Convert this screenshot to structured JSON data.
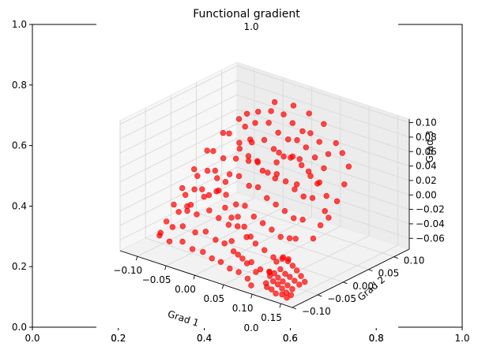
{
  "chart_data": {
    "type": "scatter",
    "title": "Functional gradient",
    "colors": {
      "points": "#ff0000",
      "pane": "#f2f2f2",
      "grid": "#d9d9d9"
    },
    "outer_axes": {
      "xlim": [
        0,
        1
      ],
      "ylim": [
        0,
        1
      ],
      "x_ticks": [
        "0.0",
        "0.2",
        "0.4",
        "0.6",
        "0.8",
        "1.0"
      ],
      "y_ticks": [
        "0.0",
        "0.2",
        "0.4",
        "0.6",
        "0.8",
        "1.0"
      ],
      "inner_x_ticks": [
        "0.0",
        "0.2",
        "0.4",
        "0.6",
        "0.8",
        "1.0"
      ],
      "stray_ticks": [
        "1.0",
        "0.0"
      ]
    },
    "axes3d": {
      "xlabel": "Grad 1",
      "ylabel": "Grad 2",
      "zlabel": "Grad 3",
      "xlim": [
        -0.13,
        0.17
      ],
      "ylim": [
        -0.1,
        0.13
      ],
      "zlim": [
        -0.075,
        0.105
      ],
      "x_ticks": [
        "−0.10",
        "−0.05",
        "0.00",
        "0.05",
        "0.10",
        "0.15"
      ],
      "y_ticks": [
        "−0.10",
        "−0.05",
        "0.00",
        "0.05",
        "0.10"
      ],
      "z_ticks": [
        "−0.06",
        "−0.04",
        "−0.02",
        "0.00",
        "0.02",
        "0.04",
        "0.06",
        "0.08",
        "0.10"
      ],
      "x_tick_values": [
        -0.1,
        -0.05,
        0.0,
        0.05,
        0.1,
        0.15
      ],
      "y_tick_values": [
        -0.1,
        -0.05,
        0.0,
        0.05,
        0.1
      ],
      "z_tick_values": [
        -0.06,
        -0.04,
        -0.02,
        0.0,
        0.02,
        0.04,
        0.06,
        0.08,
        0.1
      ],
      "grid": true
    },
    "points": [
      {
        "x": -0.095,
        "y": 0.11,
        "z": 0.05
      },
      {
        "x": -0.08,
        "y": 0.115,
        "z": 0.055
      },
      {
        "x": -0.06,
        "y": 0.118,
        "z": 0.06
      },
      {
        "x": -0.04,
        "y": 0.12,
        "z": 0.06
      },
      {
        "x": -0.02,
        "y": 0.115,
        "z": 0.055
      },
      {
        "x": 0.0,
        "y": 0.112,
        "z": 0.05
      },
      {
        "x": 0.02,
        "y": 0.105,
        "z": 0.055
      },
      {
        "x": 0.04,
        "y": 0.1,
        "z": 0.05
      },
      {
        "x": 0.06,
        "y": 0.095,
        "z": 0.04
      },
      {
        "x": -0.1,
        "y": 0.1,
        "z": 0.045
      },
      {
        "x": -0.085,
        "y": 0.095,
        "z": 0.04
      },
      {
        "x": -0.07,
        "y": 0.098,
        "z": 0.048
      },
      {
        "x": -0.05,
        "y": 0.102,
        "z": 0.052
      },
      {
        "x": -0.03,
        "y": 0.098,
        "z": 0.045
      },
      {
        "x": -0.01,
        "y": 0.095,
        "z": 0.042
      },
      {
        "x": 0.01,
        "y": 0.09,
        "z": 0.048
      },
      {
        "x": 0.03,
        "y": 0.085,
        "z": 0.045
      },
      {
        "x": 0.05,
        "y": 0.08,
        "z": 0.038
      },
      {
        "x": 0.07,
        "y": 0.075,
        "z": 0.03
      },
      {
        "x": -0.11,
        "y": 0.08,
        "z": 0.03
      },
      {
        "x": -0.095,
        "y": 0.075,
        "z": 0.035
      },
      {
        "x": -0.08,
        "y": 0.078,
        "z": 0.025
      },
      {
        "x": -0.06,
        "y": 0.08,
        "z": 0.03
      },
      {
        "x": -0.04,
        "y": 0.082,
        "z": 0.038
      },
      {
        "x": -0.02,
        "y": 0.078,
        "z": 0.032
      },
      {
        "x": 0.0,
        "y": 0.075,
        "z": 0.028
      },
      {
        "x": 0.02,
        "y": 0.07,
        "z": 0.035
      },
      {
        "x": 0.04,
        "y": 0.065,
        "z": 0.03
      },
      {
        "x": 0.06,
        "y": 0.06,
        "z": 0.022
      },
      {
        "x": 0.08,
        "y": 0.055,
        "z": 0.02
      },
      {
        "x": -0.12,
        "y": 0.06,
        "z": 0.01
      },
      {
        "x": -0.105,
        "y": 0.055,
        "z": 0.015
      },
      {
        "x": -0.09,
        "y": 0.058,
        "z": 0.008
      },
      {
        "x": -0.07,
        "y": 0.06,
        "z": 0.012
      },
      {
        "x": -0.05,
        "y": 0.062,
        "z": 0.02
      },
      {
        "x": -0.03,
        "y": 0.058,
        "z": 0.018
      },
      {
        "x": -0.01,
        "y": 0.055,
        "z": 0.01
      },
      {
        "x": 0.01,
        "y": 0.05,
        "z": 0.015
      },
      {
        "x": 0.03,
        "y": 0.045,
        "z": 0.012
      },
      {
        "x": 0.05,
        "y": 0.04,
        "z": 0.008
      },
      {
        "x": 0.07,
        "y": 0.035,
        "z": 0.005
      },
      {
        "x": 0.09,
        "y": 0.03,
        "z": 0.01
      },
      {
        "x": -0.125,
        "y": 0.04,
        "z": -0.01
      },
      {
        "x": -0.115,
        "y": 0.035,
        "z": -0.015
      },
      {
        "x": -0.1,
        "y": 0.038,
        "z": -0.005
      },
      {
        "x": -0.085,
        "y": 0.04,
        "z": -0.012
      },
      {
        "x": -0.065,
        "y": 0.042,
        "z": -0.002
      },
      {
        "x": -0.045,
        "y": 0.038,
        "z": 0.002
      },
      {
        "x": -0.025,
        "y": 0.035,
        "z": -0.005
      },
      {
        "x": -0.005,
        "y": 0.03,
        "z": 0.0
      },
      {
        "x": 0.015,
        "y": 0.025,
        "z": -0.008
      },
      {
        "x": 0.035,
        "y": 0.02,
        "z": -0.01
      },
      {
        "x": 0.055,
        "y": 0.015,
        "z": -0.012
      },
      {
        "x": 0.075,
        "y": 0.01,
        "z": -0.015
      },
      {
        "x": 0.095,
        "y": 0.005,
        "z": -0.01
      },
      {
        "x": -0.128,
        "y": 0.02,
        "z": -0.03
      },
      {
        "x": -0.118,
        "y": 0.015,
        "z": -0.035
      },
      {
        "x": -0.105,
        "y": 0.018,
        "z": -0.025
      },
      {
        "x": -0.09,
        "y": 0.02,
        "z": -0.032
      },
      {
        "x": -0.07,
        "y": 0.022,
        "z": -0.02
      },
      {
        "x": -0.05,
        "y": 0.018,
        "z": -0.018
      },
      {
        "x": -0.03,
        "y": 0.015,
        "z": -0.025
      },
      {
        "x": -0.01,
        "y": 0.01,
        "z": -0.02
      },
      {
        "x": 0.01,
        "y": 0.005,
        "z": -0.028
      },
      {
        "x": 0.03,
        "y": 0.0,
        "z": -0.03
      },
      {
        "x": 0.05,
        "y": -0.005,
        "z": -0.032
      },
      {
        "x": 0.07,
        "y": -0.01,
        "z": -0.035
      },
      {
        "x": 0.09,
        "y": -0.015,
        "z": -0.03
      },
      {
        "x": 0.105,
        "y": -0.02,
        "z": -0.025
      },
      {
        "x": -0.125,
        "y": 0.0,
        "z": -0.045
      },
      {
        "x": -0.112,
        "y": -0.005,
        "z": -0.05
      },
      {
        "x": -0.1,
        "y": -0.002,
        "z": -0.04
      },
      {
        "x": -0.085,
        "y": 0.0,
        "z": -0.048
      },
      {
        "x": -0.065,
        "y": 0.002,
        "z": -0.038
      },
      {
        "x": -0.045,
        "y": -0.002,
        "z": -0.042
      },
      {
        "x": -0.025,
        "y": -0.005,
        "z": -0.045
      },
      {
        "x": -0.005,
        "y": -0.01,
        "z": -0.04
      },
      {
        "x": 0.015,
        "y": -0.015,
        "z": -0.048
      },
      {
        "x": 0.035,
        "y": -0.02,
        "z": -0.05
      },
      {
        "x": 0.055,
        "y": -0.025,
        "z": -0.052
      },
      {
        "x": 0.075,
        "y": -0.03,
        "z": -0.055
      },
      {
        "x": 0.095,
        "y": -0.035,
        "z": -0.05
      },
      {
        "x": 0.11,
        "y": -0.04,
        "z": -0.045
      },
      {
        "x": -0.12,
        "y": -0.02,
        "z": -0.06
      },
      {
        "x": -0.105,
        "y": -0.025,
        "z": -0.062
      },
      {
        "x": -0.09,
        "y": -0.022,
        "z": -0.058
      },
      {
        "x": -0.07,
        "y": -0.02,
        "z": -0.062
      },
      {
        "x": -0.05,
        "y": -0.022,
        "z": -0.055
      },
      {
        "x": -0.03,
        "y": -0.025,
        "z": -0.06
      },
      {
        "x": -0.01,
        "y": -0.03,
        "z": -0.058
      },
      {
        "x": 0.01,
        "y": -0.035,
        "z": -0.062
      },
      {
        "x": 0.03,
        "y": -0.04,
        "z": -0.065
      },
      {
        "x": 0.05,
        "y": -0.045,
        "z": -0.063
      },
      {
        "x": 0.07,
        "y": -0.05,
        "z": -0.066
      },
      {
        "x": 0.09,
        "y": -0.055,
        "z": -0.062
      },
      {
        "x": -0.11,
        "y": -0.045,
        "z": -0.068
      },
      {
        "x": -0.09,
        "y": -0.048,
        "z": -0.07
      },
      {
        "x": -0.07,
        "y": -0.045,
        "z": -0.066
      },
      {
        "x": -0.05,
        "y": -0.048,
        "z": -0.07
      },
      {
        "x": -0.03,
        "y": -0.05,
        "z": -0.068
      },
      {
        "x": -0.01,
        "y": -0.055,
        "z": -0.07
      },
      {
        "x": 0.01,
        "y": -0.06,
        "z": -0.068
      },
      {
        "x": 0.03,
        "y": -0.065,
        "z": -0.07
      },
      {
        "x": 0.05,
        "y": -0.07,
        "z": -0.068
      },
      {
        "x": 0.07,
        "y": -0.075,
        "z": -0.07
      },
      {
        "x": 0.095,
        "y": -0.06,
        "z": -0.06
      },
      {
        "x": 0.1,
        "y": -0.065,
        "z": -0.062
      },
      {
        "x": 0.105,
        "y": -0.062,
        "z": -0.058
      },
      {
        "x": 0.11,
        "y": -0.07,
        "z": -0.065
      },
      {
        "x": 0.115,
        "y": -0.066,
        "z": -0.06
      },
      {
        "x": 0.12,
        "y": -0.072,
        "z": -0.066
      },
      {
        "x": 0.125,
        "y": -0.068,
        "z": -0.062
      },
      {
        "x": 0.13,
        "y": -0.075,
        "z": -0.068
      },
      {
        "x": 0.135,
        "y": -0.07,
        "z": -0.064
      },
      {
        "x": 0.14,
        "y": -0.078,
        "z": -0.07
      },
      {
        "x": 0.145,
        "y": -0.072,
        "z": -0.066
      },
      {
        "x": 0.15,
        "y": -0.08,
        "z": -0.07
      },
      {
        "x": 0.102,
        "y": -0.075,
        "z": -0.068
      },
      {
        "x": 0.108,
        "y": -0.08,
        "z": -0.07
      },
      {
        "x": 0.118,
        "y": -0.082,
        "z": -0.07
      },
      {
        "x": 0.128,
        "y": -0.085,
        "z": -0.072
      },
      {
        "x": 0.138,
        "y": -0.084,
        "z": -0.071
      },
      {
        "x": 0.148,
        "y": -0.086,
        "z": -0.072
      },
      {
        "x": 0.112,
        "y": -0.058,
        "z": -0.052
      },
      {
        "x": 0.122,
        "y": -0.06,
        "z": -0.055
      },
      {
        "x": 0.132,
        "y": -0.062,
        "z": -0.056
      },
      {
        "x": 0.142,
        "y": -0.064,
        "z": -0.058
      },
      {
        "x": 0.152,
        "y": -0.066,
        "z": -0.06
      },
      {
        "x": 0.098,
        "y": -0.05,
        "z": -0.048
      },
      {
        "x": 0.108,
        "y": -0.048,
        "z": -0.04
      },
      {
        "x": 0.118,
        "y": -0.05,
        "z": -0.042
      },
      {
        "x": 0.128,
        "y": -0.052,
        "z": -0.045
      },
      {
        "x": 0.138,
        "y": -0.055,
        "z": -0.048
      },
      {
        "x": 0.148,
        "y": -0.058,
        "z": -0.052
      },
      {
        "x": 0.158,
        "y": -0.062,
        "z": -0.056
      },
      {
        "x": -0.1,
        "y": 0.06,
        "z": -0.04
      },
      {
        "x": -0.08,
        "y": 0.05,
        "z": -0.055
      },
      {
        "x": -0.06,
        "y": 0.04,
        "z": -0.06
      },
      {
        "x": -0.04,
        "y": 0.03,
        "z": -0.05
      },
      {
        "x": -0.02,
        "y": 0.02,
        "z": -0.055
      },
      {
        "x": 0.0,
        "y": 0.01,
        "z": -0.06
      },
      {
        "x": -0.09,
        "y": 0.09,
        "z": 0.01
      },
      {
        "x": -0.07,
        "y": 0.085,
        "z": 0.0
      },
      {
        "x": -0.05,
        "y": 0.09,
        "z": -0.01
      },
      {
        "x": -0.03,
        "y": 0.095,
        "z": 0.005
      },
      {
        "x": -0.01,
        "y": 0.1,
        "z": 0.015
      },
      {
        "x": 0.01,
        "y": 0.095,
        "z": 0.02
      },
      {
        "x": 0.03,
        "y": 0.09,
        "z": 0.01
      },
      {
        "x": 0.05,
        "y": 0.085,
        "z": 0.0
      },
      {
        "x": 0.07,
        "y": 0.08,
        "z": -0.01
      },
      {
        "x": 0.085,
        "y": 0.06,
        "z": -0.02
      },
      {
        "x": 0.095,
        "y": 0.04,
        "z": -0.03
      },
      {
        "x": 0.1,
        "y": 0.02,
        "z": -0.04
      },
      {
        "x": -0.115,
        "y": 0.07,
        "z": -0.02
      },
      {
        "x": -0.12,
        "y": 0.05,
        "z": -0.04
      },
      {
        "x": -0.122,
        "y": 0.03,
        "z": -0.055
      },
      {
        "x": 0.06,
        "y": 0.11,
        "z": 0.05
      },
      {
        "x": 0.08,
        "y": 0.1,
        "z": 0.045
      },
      {
        "x": 0.1,
        "y": 0.09,
        "z": 0.035
      },
      {
        "x": 0.11,
        "y": 0.07,
        "z": 0.02
      },
      {
        "x": 0.115,
        "y": 0.05,
        "z": 0.005
      },
      {
        "x": 0.118,
        "y": 0.03,
        "z": -0.01
      },
      {
        "x": -0.06,
        "y": 0.125,
        "z": 0.07
      },
      {
        "x": -0.03,
        "y": 0.128,
        "z": 0.072
      },
      {
        "x": 0.0,
        "y": 0.125,
        "z": 0.07
      },
      {
        "x": 0.03,
        "y": 0.12,
        "z": 0.065
      },
      {
        "x": -0.045,
        "y": 0.06,
        "z": 0.045
      },
      {
        "x": -0.015,
        "y": 0.04,
        "z": 0.03
      },
      {
        "x": 0.005,
        "y": 0.06,
        "z": 0.04
      },
      {
        "x": 0.025,
        "y": 0.03,
        "z": 0.02
      },
      {
        "x": 0.045,
        "y": 0.05,
        "z": 0.01
      },
      {
        "x": -0.035,
        "y": 0.0,
        "z": 0.01
      },
      {
        "x": -0.055,
        "y": -0.01,
        "z": -0.01
      },
      {
        "x": -0.075,
        "y": -0.03,
        "z": -0.03
      },
      {
        "x": -0.095,
        "y": -0.06,
        "z": -0.055
      },
      {
        "x": 0.02,
        "y": -0.05,
        "z": -0.04
      },
      {
        "x": 0.04,
        "y": -0.06,
        "z": -0.05
      },
      {
        "x": 0.06,
        "y": -0.065,
        "z": -0.055
      },
      {
        "x": 0.08,
        "y": -0.07,
        "z": -0.06
      },
      {
        "x": 0.085,
        "y": -0.085,
        "z": -0.072
      }
    ]
  }
}
